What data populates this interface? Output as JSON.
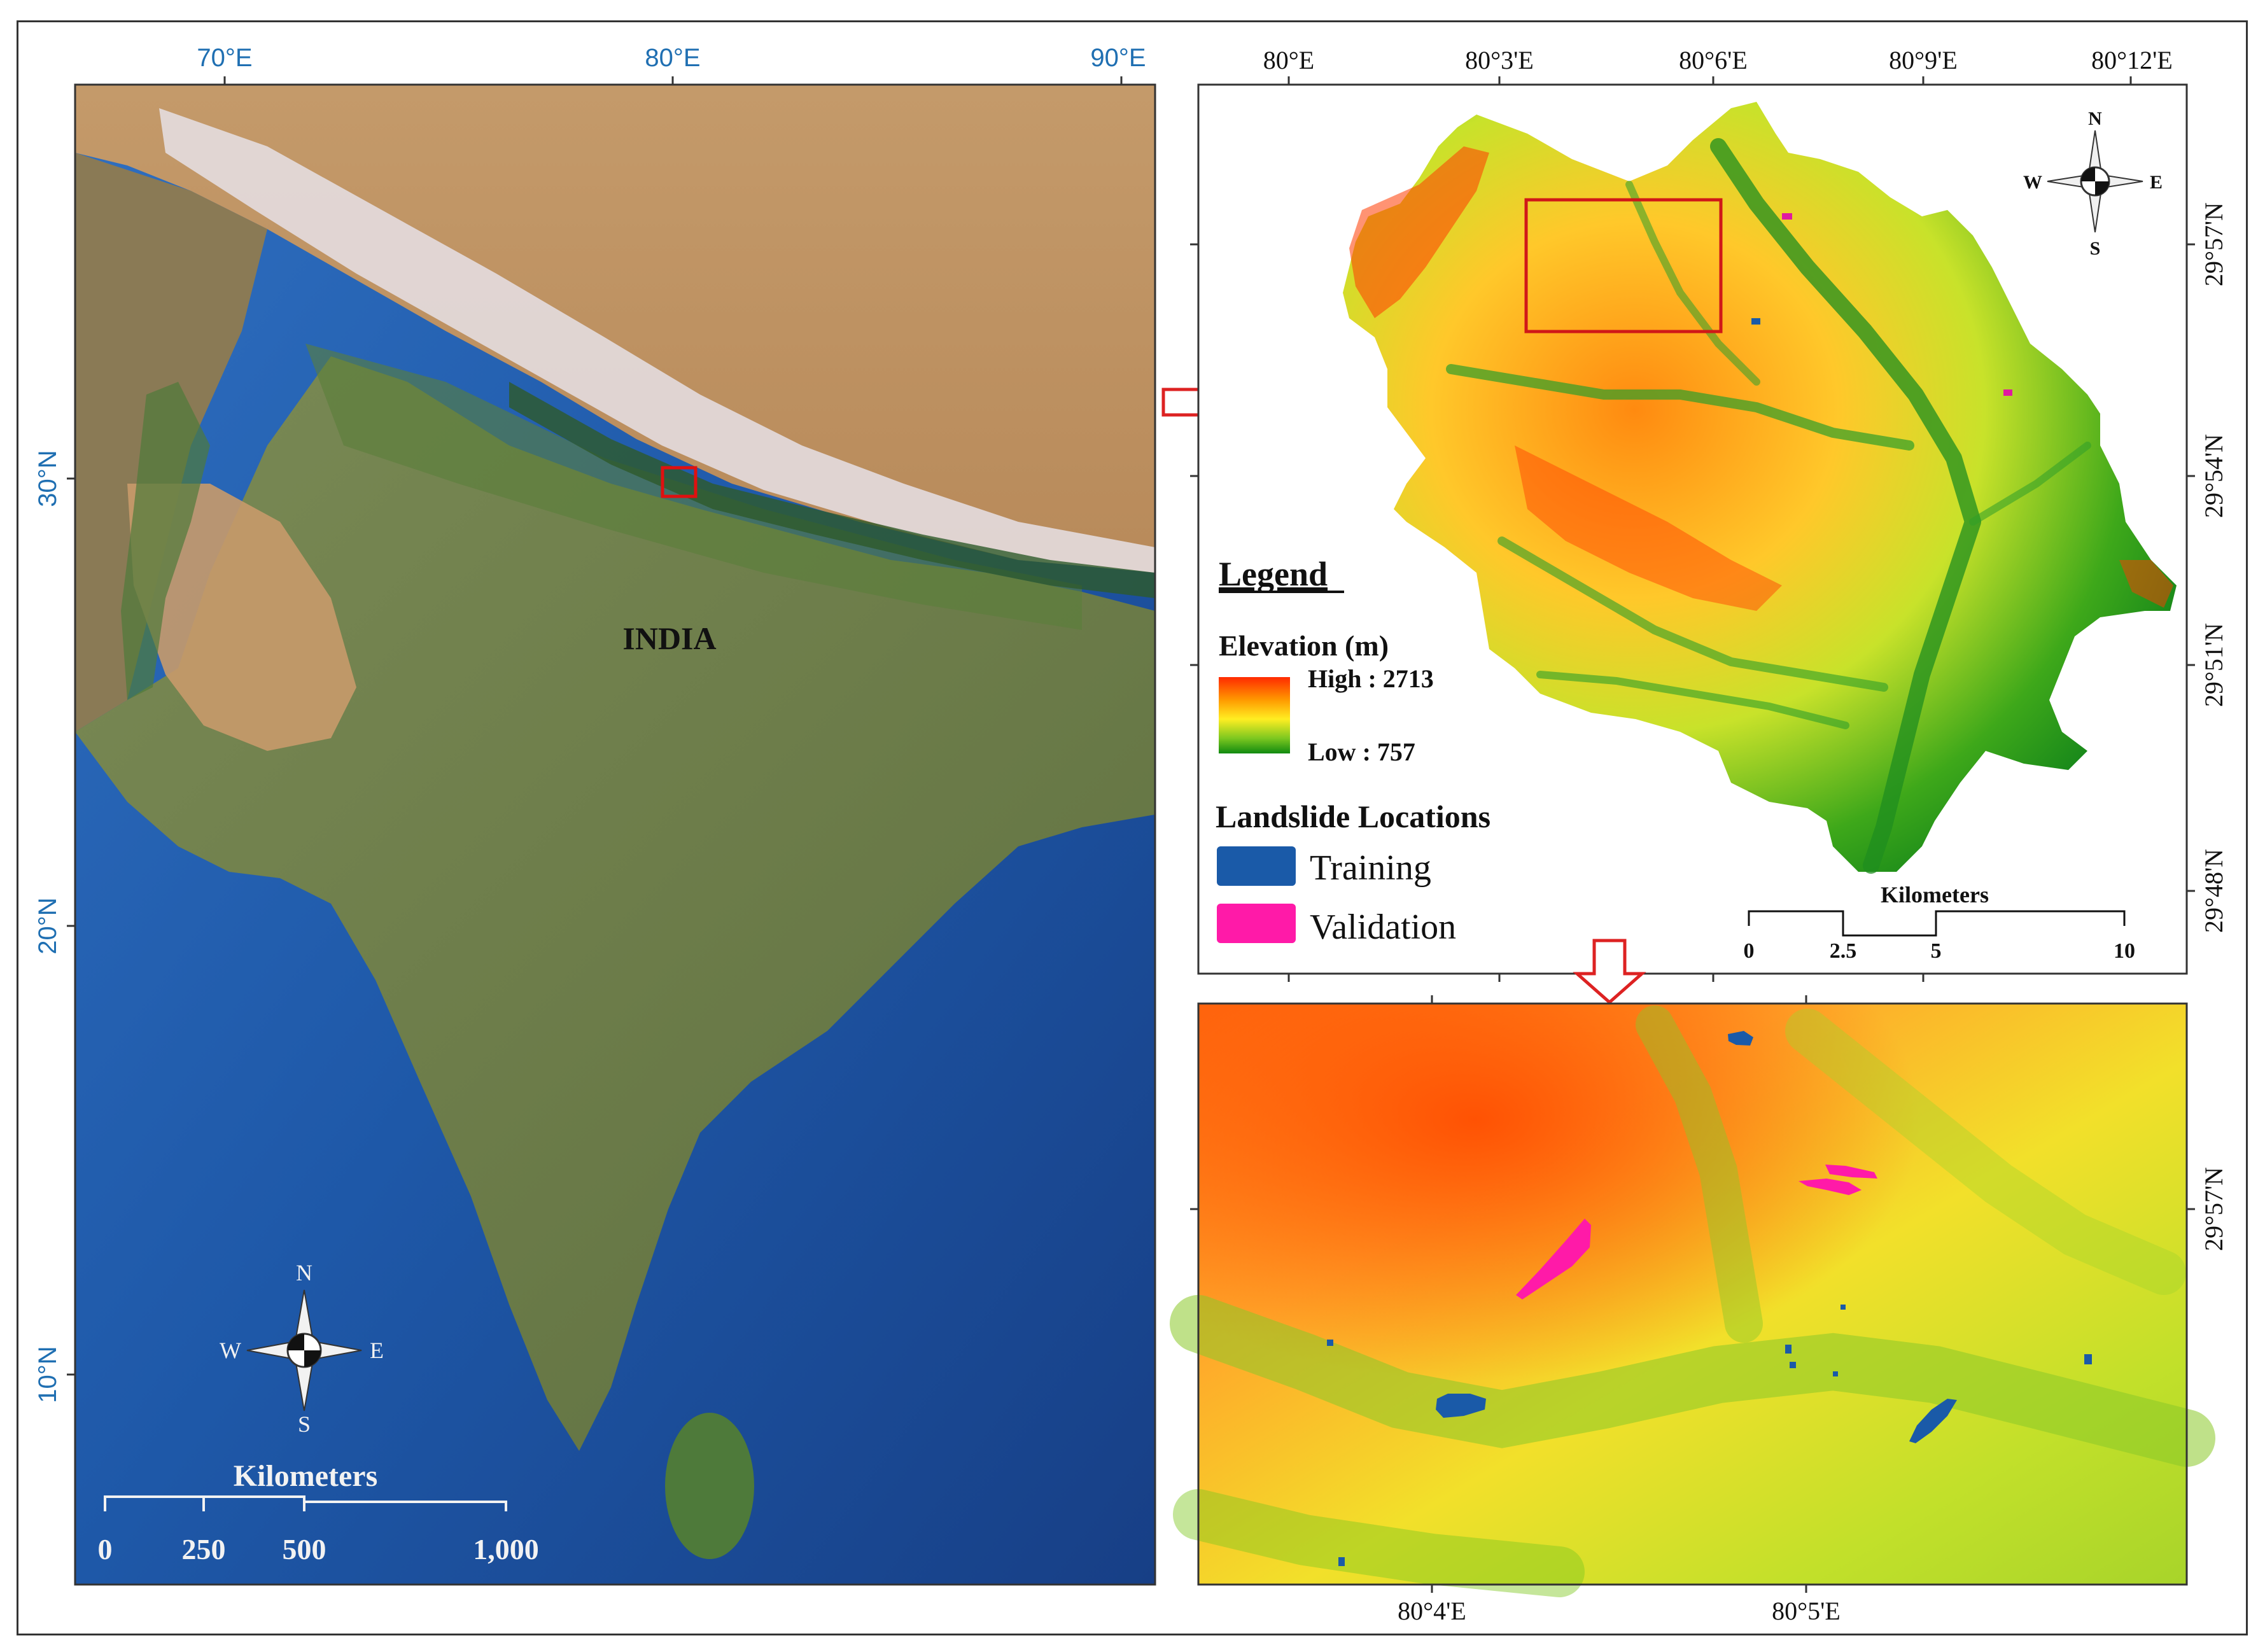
{
  "india_map": {
    "lon_labels": [
      "70°E",
      "80°E",
      "90°E"
    ],
    "lat_labels": [
      "30°N",
      "20°N",
      "10°N"
    ],
    "country_label": "INDIA",
    "compass": {
      "n": "N",
      "s": "S",
      "e": "E",
      "w": "W"
    },
    "scale_title": "Kilometers",
    "scale_ticks": [
      "0",
      "250",
      "500",
      "1,000"
    ]
  },
  "dem_map": {
    "lon_labels": [
      "80°E",
      "80°3'E",
      "80°6'E",
      "80°9'E",
      "80°12'E"
    ],
    "lat_labels": [
      "29°57'N",
      "29°54'N",
      "29°51'N",
      "29°48'N"
    ],
    "compass": {
      "n": "N",
      "s": "S",
      "e": "E",
      "w": "W"
    },
    "legend_title": "Legend",
    "elevation_title": "Elevation (m)",
    "elevation_high": "High : 2713",
    "elevation_low": "Low : 757",
    "landslide_title": "Landslide Locations",
    "training_label": "Training",
    "validation_label": "Validation",
    "scale_title": "Kilometers",
    "scale_ticks": [
      "0",
      "2.5",
      "5",
      "10"
    ],
    "colors": {
      "training": "#1a5aa8",
      "validation": "#ff1aa8",
      "high": "#ff3a00",
      "mid": "#ffee00",
      "low": "#1a8a1a"
    }
  },
  "zoom_map": {
    "lon_labels": [
      "80°4'E",
      "80°5'E"
    ],
    "lat_labels": [
      "29°57'N"
    ]
  }
}
